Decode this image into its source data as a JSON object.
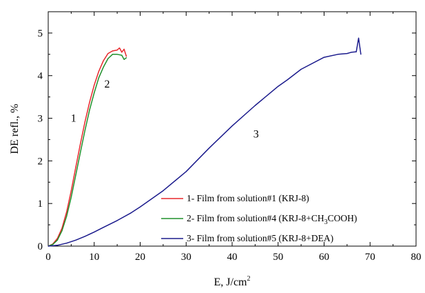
{
  "chart_data": {
    "type": "line",
    "xlabel_main": "E, J/cm",
    "xlabel_sup": "2",
    "ylabel": "DE refl., %",
    "xlim": [
      0,
      80
    ],
    "ylim": [
      0,
      5.5
    ],
    "xticks": [
      "0",
      "10",
      "20",
      "30",
      "40",
      "50",
      "60",
      "70",
      "80"
    ],
    "yticks": [
      "0",
      "1",
      "2",
      "3",
      "4",
      "5"
    ],
    "grid": false,
    "legend_position": "bottom-right",
    "series": [
      {
        "name": "1- Film from solution#1 (KRJ-8)",
        "color": "#e8262b",
        "label": "1",
        "label_at": [
          5.5,
          2.92
        ],
        "x": [
          0,
          1,
          2,
          3,
          4,
          5,
          6,
          7,
          8,
          9,
          10,
          11,
          12,
          13,
          14,
          15,
          15.5,
          16,
          16.5,
          17
        ],
        "y": [
          0,
          0.05,
          0.18,
          0.42,
          0.8,
          1.3,
          1.85,
          2.4,
          2.92,
          3.38,
          3.78,
          4.1,
          4.35,
          4.52,
          4.58,
          4.6,
          4.65,
          4.55,
          4.62,
          4.45
        ]
      },
      {
        "name": "2- Film from solution#4 (KRJ-8+CH3COOH)",
        "name_parts": [
          "2- Film from solution#4 (KRJ-8+CH",
          "3",
          "COOH)"
        ],
        "color": "#1f8f2a",
        "label": "2",
        "label_at": [
          12.8,
          3.72
        ],
        "x": [
          0,
          1,
          2,
          3,
          4,
          5,
          6,
          7,
          8,
          9,
          10,
          11,
          12,
          13,
          14,
          15,
          16,
          16.5,
          17
        ],
        "y": [
          0,
          0.04,
          0.14,
          0.36,
          0.7,
          1.15,
          1.67,
          2.2,
          2.72,
          3.2,
          3.6,
          3.95,
          4.2,
          4.4,
          4.5,
          4.5,
          4.48,
          4.38,
          4.42
        ]
      },
      {
        "name": "3- Film from solution#5 (KRJ-8+DEA)",
        "color": "#1a1a8c",
        "label": "3",
        "label_at": [
          45.2,
          2.55
        ],
        "x": [
          0,
          2,
          4,
          6,
          8,
          10,
          12,
          15,
          18,
          20,
          25,
          30,
          35,
          40,
          45,
          50,
          52,
          55,
          60,
          63,
          65,
          66,
          67,
          67.5,
          68
        ],
        "y": [
          0,
          0.02,
          0.07,
          0.14,
          0.23,
          0.33,
          0.44,
          0.6,
          0.78,
          0.92,
          1.3,
          1.75,
          2.3,
          2.82,
          3.3,
          3.75,
          3.9,
          4.15,
          4.43,
          4.5,
          4.52,
          4.55,
          4.56,
          4.88,
          4.5
        ]
      }
    ]
  }
}
